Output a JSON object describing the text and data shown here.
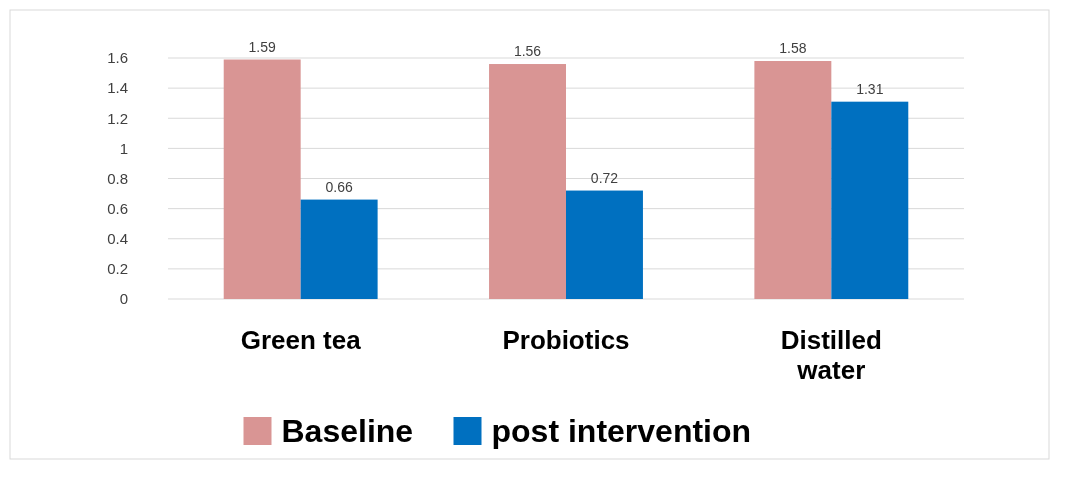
{
  "chart_data": {
    "type": "bar",
    "categories": [
      "Green tea",
      "Probiotics",
      "Distilled water"
    ],
    "series": [
      {
        "name": "Baseline",
        "color": "#d99594",
        "values": [
          1.59,
          1.56,
          1.58
        ]
      },
      {
        "name": "post intervention",
        "color": "#0070c0",
        "values": [
          0.66,
          0.72,
          1.31
        ]
      }
    ],
    "ylim": [
      0,
      1.6
    ],
    "yticks": [
      0,
      0.2,
      0.4,
      0.6,
      0.8,
      1,
      1.2,
      1.4,
      1.6
    ],
    "grid": "y",
    "legend": "bottom",
    "data_labels": true
  }
}
